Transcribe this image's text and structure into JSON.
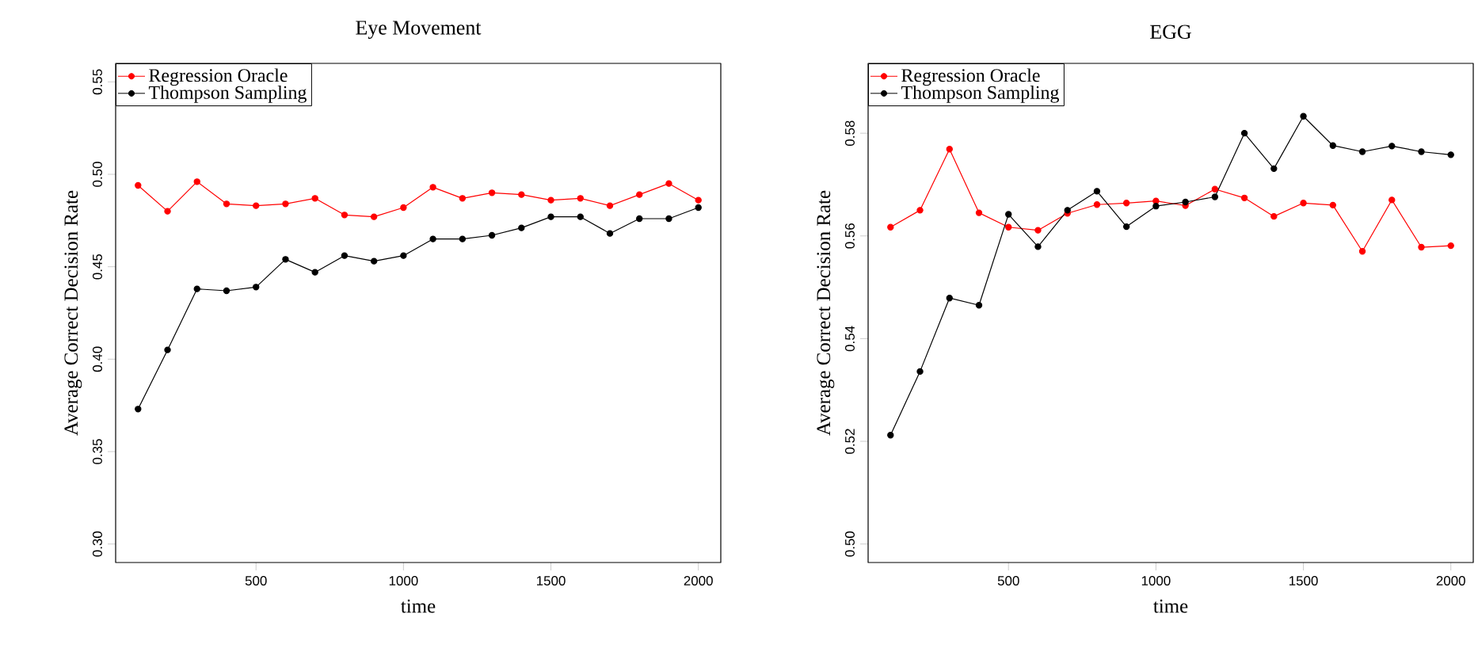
{
  "chart_data": [
    {
      "type": "line",
      "title": "Eye Movement",
      "xlabel": "time",
      "ylabel": "Average Correct Decision Rate",
      "x": [
        100,
        200,
        300,
        400,
        500,
        600,
        700,
        800,
        900,
        1000,
        1100,
        1200,
        1300,
        1400,
        1500,
        1600,
        1700,
        1800,
        1900,
        2000
      ],
      "xlim": [
        24,
        2076
      ],
      "xticks": [
        500,
        1000,
        1500,
        2000
      ],
      "ylim": [
        0.29,
        0.56
      ],
      "yticks": [
        {
          "value": 0.3,
          "label": "0.30"
        },
        0.35,
        {
          "value": 0.4,
          "label": "0.40"
        },
        0.45,
        {
          "value": 0.5,
          "label": "0.50"
        },
        0.55
      ],
      "legend": "top left",
      "marker": "circle",
      "series": [
        {
          "name": "Regression Oracle",
          "color": "#ff0000",
          "values": [
            0.494,
            0.48,
            0.496,
            0.484,
            0.483,
            0.484,
            0.487,
            0.478,
            0.477,
            0.482,
            0.493,
            0.487,
            0.49,
            0.489,
            0.486,
            0.487,
            0.483,
            0.489,
            0.495,
            0.486
          ]
        },
        {
          "name": "Thompson Sampling",
          "color": "#000000",
          "values": [
            0.373,
            0.405,
            0.438,
            0.437,
            0.439,
            0.454,
            0.447,
            0.456,
            0.453,
            0.456,
            0.465,
            0.465,
            0.467,
            0.471,
            0.477,
            0.477,
            0.468,
            0.476,
            0.476,
            0.482
          ]
        }
      ]
    },
    {
      "type": "line",
      "title": "EGG",
      "xlabel": "time",
      "ylabel": "Average Correct Decision Rate",
      "x": [
        100,
        200,
        300,
        400,
        500,
        600,
        700,
        800,
        900,
        1000,
        1100,
        1200,
        1300,
        1400,
        1500,
        1600,
        1700,
        1800,
        1900,
        2000
      ],
      "xlim": [
        24,
        2076
      ],
      "xticks": [
        500,
        1000,
        1500,
        2000
      ],
      "ylim": [
        0.4964,
        0.5936
      ],
      "yticks": [
        {
          "value": 0.5,
          "label": "0.50"
        },
        0.52,
        0.54,
        0.56,
        0.58
      ],
      "legend": "top left",
      "marker": "circle",
      "series": [
        {
          "name": "Regression Oracle",
          "color": "#ff0000",
          "values": [
            0.5617,
            0.565,
            0.5769,
            0.5645,
            0.5617,
            0.5611,
            0.5644,
            0.5661,
            0.5664,
            0.5668,
            0.5659,
            0.5691,
            0.5674,
            0.5638,
            0.5664,
            0.566,
            0.557,
            0.567,
            0.5578,
            0.5581
          ]
        },
        {
          "name": "Thompson Sampling",
          "color": "#000000",
          "values": [
            0.5212,
            0.5336,
            0.5479,
            0.5465,
            0.5642,
            0.5579,
            0.565,
            0.5687,
            0.5618,
            0.5658,
            0.5666,
            0.5676,
            0.58,
            0.5731,
            0.5833,
            0.5776,
            0.5764,
            0.5775,
            0.5764,
            0.5758
          ]
        }
      ]
    }
  ]
}
